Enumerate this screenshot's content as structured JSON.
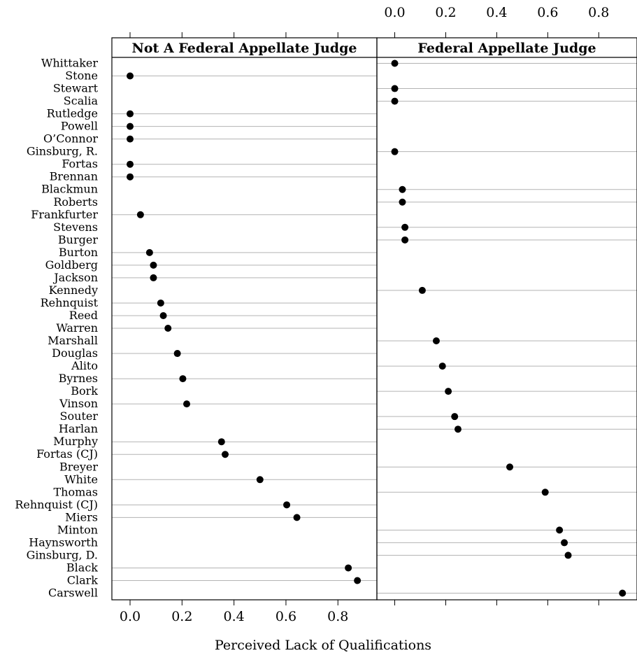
{
  "chart_data": {
    "type": "dotplot",
    "xlabel": "Perceived Lack of Qualifications",
    "xlim": [
      -0.07,
      0.95
    ],
    "x_ticks": [
      0.0,
      0.2,
      0.4,
      0.6,
      0.8
    ],
    "x_tick_labels": [
      "0.0",
      "0.2",
      "0.4",
      "0.6",
      "0.8"
    ],
    "grid": "horizontal lines at every category (only where a value exists)",
    "categories": [
      "Whittaker",
      "Stone",
      "Stewart",
      "Scalia",
      "Rutledge",
      "Powell",
      "O’Connor",
      "Ginsburg, R.",
      "Fortas",
      "Brennan",
      "Blackmun",
      "Roberts",
      "Frankfurter",
      "Stevens",
      "Burger",
      "Burton",
      "Goldberg",
      "Jackson",
      "Kennedy",
      "Rehnquist",
      "Reed",
      "Warren",
      "Marshall",
      "Douglas",
      "Alito",
      "Byrnes",
      "Bork",
      "Vinson",
      "Souter",
      "Harlan",
      "Murphy",
      "Fortas (CJ)",
      "Breyer",
      "White",
      "Thomas",
      "Rehnquist (CJ)",
      "Miers",
      "Minton",
      "Haynsworth",
      "Ginsburg, D.",
      "Black",
      "Clark",
      "Carswell"
    ],
    "panels": [
      {
        "name": "Not A Federal Appellate Judge",
        "points": [
          {
            "category": "Stone",
            "value": 0.0
          },
          {
            "category": "Rutledge",
            "value": 0.0
          },
          {
            "category": "Powell",
            "value": 0.0
          },
          {
            "category": "O’Connor",
            "value": 0.0
          },
          {
            "category": "Fortas",
            "value": 0.0
          },
          {
            "category": "Brennan",
            "value": 0.0
          },
          {
            "category": "Frankfurter",
            "value": 0.04
          },
          {
            "category": "Burton",
            "value": 0.075
          },
          {
            "category": "Goldberg",
            "value": 0.09
          },
          {
            "category": "Jackson",
            "value": 0.09
          },
          {
            "category": "Rehnquist",
            "value": 0.118
          },
          {
            "category": "Reed",
            "value": 0.128
          },
          {
            "category": "Warren",
            "value": 0.146
          },
          {
            "category": "Douglas",
            "value": 0.182
          },
          {
            "category": "Byrnes",
            "value": 0.203
          },
          {
            "category": "Vinson",
            "value": 0.218
          },
          {
            "category": "Murphy",
            "value": 0.352
          },
          {
            "category": "Fortas (CJ)",
            "value": 0.366
          },
          {
            "category": "White",
            "value": 0.5
          },
          {
            "category": "Rehnquist (CJ)",
            "value": 0.603
          },
          {
            "category": "Miers",
            "value": 0.642
          },
          {
            "category": "Black",
            "value": 0.84
          },
          {
            "category": "Clark",
            "value": 0.875
          }
        ]
      },
      {
        "name": "Federal Appellate Judge",
        "points": [
          {
            "category": "Whittaker",
            "value": 0.0
          },
          {
            "category": "Stewart",
            "value": 0.0
          },
          {
            "category": "Scalia",
            "value": 0.0
          },
          {
            "category": "Ginsburg, R.",
            "value": 0.0
          },
          {
            "category": "Blackmun",
            "value": 0.03
          },
          {
            "category": "Roberts",
            "value": 0.03
          },
          {
            "category": "Stevens",
            "value": 0.04
          },
          {
            "category": "Burger",
            "value": 0.04
          },
          {
            "category": "Kennedy",
            "value": 0.108
          },
          {
            "category": "Marshall",
            "value": 0.163
          },
          {
            "category": "Alito",
            "value": 0.187
          },
          {
            "category": "Bork",
            "value": 0.21
          },
          {
            "category": "Souter",
            "value": 0.235
          },
          {
            "category": "Harlan",
            "value": 0.248
          },
          {
            "category": "Breyer",
            "value": 0.451
          },
          {
            "category": "Thomas",
            "value": 0.59
          },
          {
            "category": "Minton",
            "value": 0.646
          },
          {
            "category": "Haynsworth",
            "value": 0.665
          },
          {
            "category": "Ginsburg, D.",
            "value": 0.68
          },
          {
            "category": "Carswell",
            "value": 0.893
          }
        ]
      }
    ]
  }
}
